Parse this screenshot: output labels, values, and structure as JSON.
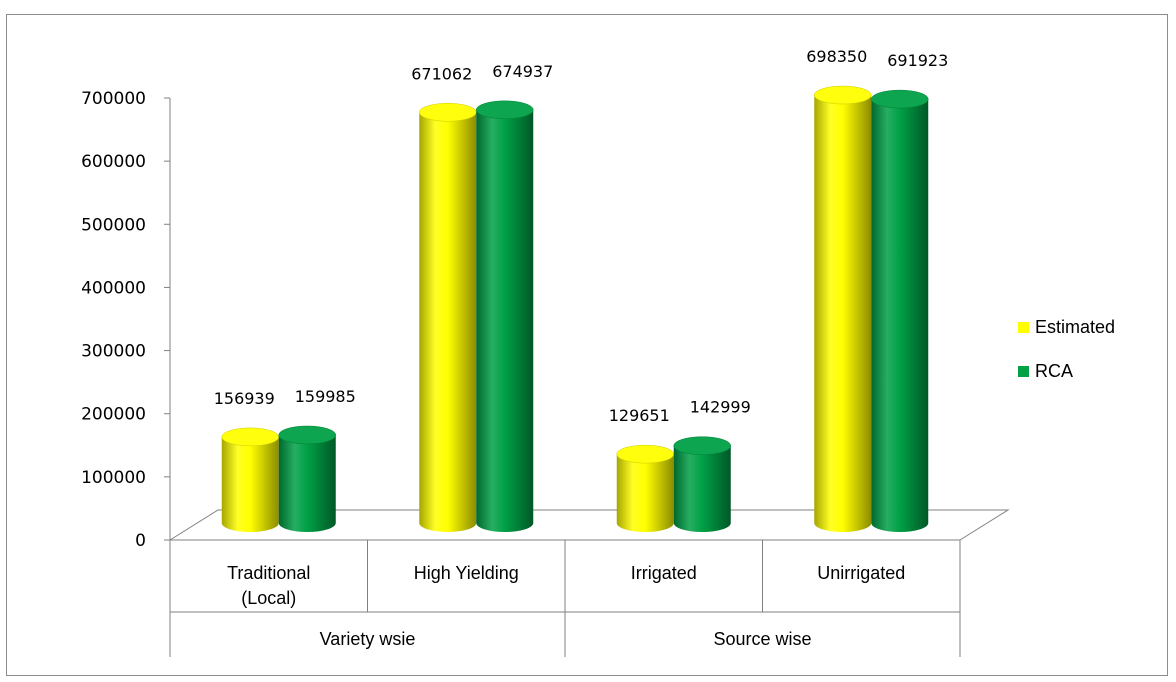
{
  "chart_data": {
    "type": "bar",
    "style": "3d-cylinder",
    "categories": [
      "Traditional\n(Local)",
      "High Yielding",
      "Irrigated",
      "Unirrigated"
    ],
    "groups": [
      {
        "label": "Variety wsie",
        "categories": [
          "Traditional\n(Local)",
          "High Yielding"
        ]
      },
      {
        "label": "Source wise",
        "categories": [
          "Irrigated",
          "Unirrigated"
        ]
      }
    ],
    "series": [
      {
        "name": "Estimated",
        "color": "#ffff00",
        "values": [
          156939,
          671062,
          129651,
          698350
        ]
      },
      {
        "name": "RCA",
        "color": "#00a046",
        "values": [
          159985,
          674937,
          142999,
          691923
        ]
      }
    ],
    "ylim": [
      0,
      700000
    ],
    "yticks": [
      0,
      100000,
      200000,
      300000,
      400000,
      500000,
      600000,
      700000
    ],
    "legend": "right",
    "grid": false,
    "data_labels": true
  }
}
